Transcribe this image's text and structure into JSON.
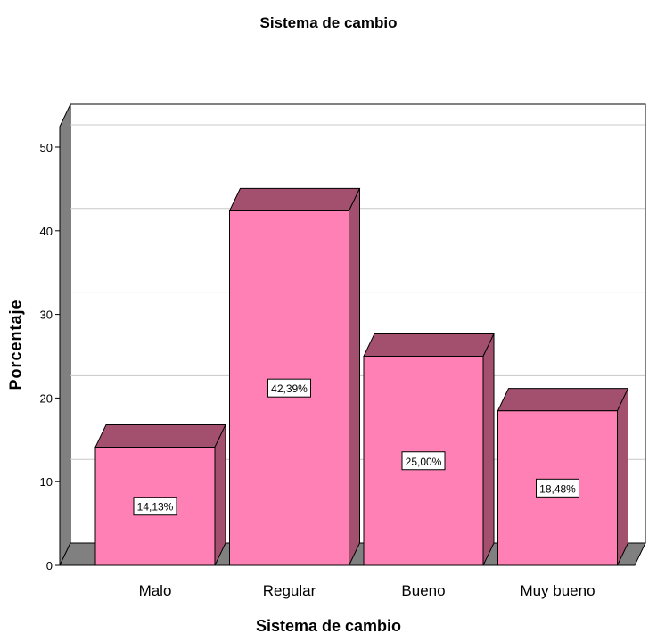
{
  "chart_data": {
    "type": "bar",
    "title": "Sistema de cambio",
    "xlabel": "Sistema de cambio",
    "ylabel": "Porcentaje",
    "categories": [
      "Malo",
      "Regular",
      "Bueno",
      "Muy bueno"
    ],
    "values": [
      14.13,
      42.39,
      25.0,
      18.48
    ],
    "data_labels": [
      "14,13%",
      "42,39%",
      "25,00%",
      "18,48%"
    ],
    "ylim": [
      0,
      50
    ],
    "yticks": [
      "0",
      "10",
      "20",
      "30",
      "40",
      "50"
    ],
    "grid": true,
    "three_d": true,
    "colors": {
      "bar_front": "#ff80b4",
      "bar_top": "#a3506e",
      "bar_side": "#a3506e",
      "wall": "#808080",
      "gridline": "#c8c8c8"
    }
  }
}
